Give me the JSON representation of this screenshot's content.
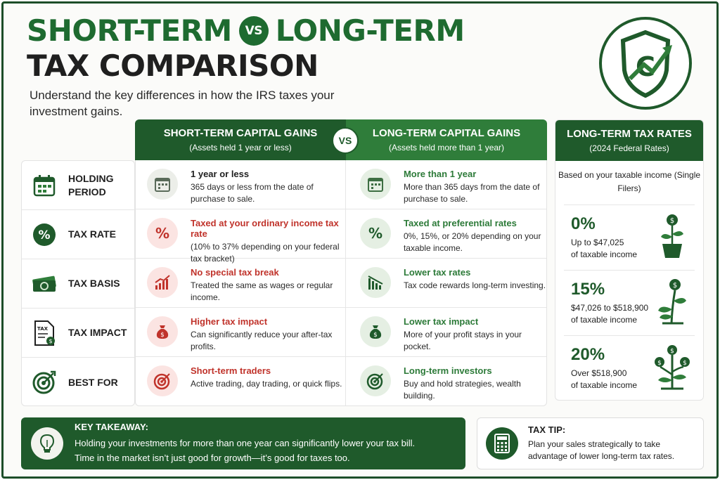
{
  "title": {
    "short": "SHORT-TERM",
    "vs": "VS",
    "long": "LONG-TERM",
    "line2": "TAX COMPARISON"
  },
  "subtitle": "Understand the key differences in how the IRS taxes your investment gains.",
  "colors": {
    "dark_green": "#1f5a2b",
    "green": "#2f7d3a",
    "red": "#c0332b"
  },
  "headers": {
    "short": {
      "title": "SHORT-TERM CAPITAL GAINS",
      "sub": "(Assets held 1 year or less)"
    },
    "vs": "VS",
    "long": {
      "title": "LONG-TERM CAPITAL GAINS",
      "sub": "(Assets held more than 1 year)"
    }
  },
  "rows": [
    {
      "label": "HOLDING PERIOD",
      "icon": "calendar-icon",
      "short": {
        "title": "1 year or less",
        "desc": "365 days or less from the date of purchase to sale."
      },
      "long": {
        "title": "More than 1 year",
        "desc": "More than 365 days from the date of purchase to sale."
      }
    },
    {
      "label": "TAX RATE",
      "icon": "percent-icon",
      "short": {
        "title": "Taxed at your ordinary income tax rate",
        "desc": "(10% to 37% depending on your federal tax bracket)"
      },
      "long": {
        "title": "Taxed at preferential rates",
        "desc": "0%, 15%, or 20% depending on your taxable income."
      }
    },
    {
      "label": "TAX BASIS",
      "icon": "money-stack-icon",
      "short": {
        "title": "No special tax break",
        "desc": "Treated the same as wages or regular income."
      },
      "long": {
        "title": "Lower tax rates",
        "desc": "Tax code rewards long-term investing."
      }
    },
    {
      "label": "TAX IMPACT",
      "icon": "tax-document-icon",
      "short": {
        "title": "Higher tax impact",
        "desc": "Can significantly reduce your after-tax profits."
      },
      "long": {
        "title": "Lower tax impact",
        "desc": "More of your profit stays in your pocket."
      }
    },
    {
      "label": "BEST FOR",
      "icon": "target-icon",
      "short": {
        "title": "Short-term traders",
        "desc": "Active trading, day trading, or quick flips."
      },
      "long": {
        "title": "Long-term investors",
        "desc": "Buy and hold strategies, wealth building."
      }
    }
  ],
  "rates": {
    "title": "LONG-TERM TAX RATES",
    "subtitle": "(2024 Federal Rates)",
    "basis": "Based on your taxable income (Single Filers)",
    "items": [
      {
        "pct": "0%",
        "range": "Up to $47,025",
        "unit": "of taxable income"
      },
      {
        "pct": "15%",
        "range": "$47,026 to $518,900",
        "unit": "of taxable income"
      },
      {
        "pct": "20%",
        "range": "Over $518,900",
        "unit": "of taxable income"
      }
    ]
  },
  "takeaway": {
    "title": "KEY TAKEAWAY:",
    "line1": "Holding your investments for more than one year can significantly lower your tax bill.",
    "line2": "Time in the market isn’t just good for growth—it’s good for taxes too."
  },
  "tip": {
    "title": "TAX TIP:",
    "text": "Plan your sales strategically to take advantage of lower long-term tax rates."
  }
}
